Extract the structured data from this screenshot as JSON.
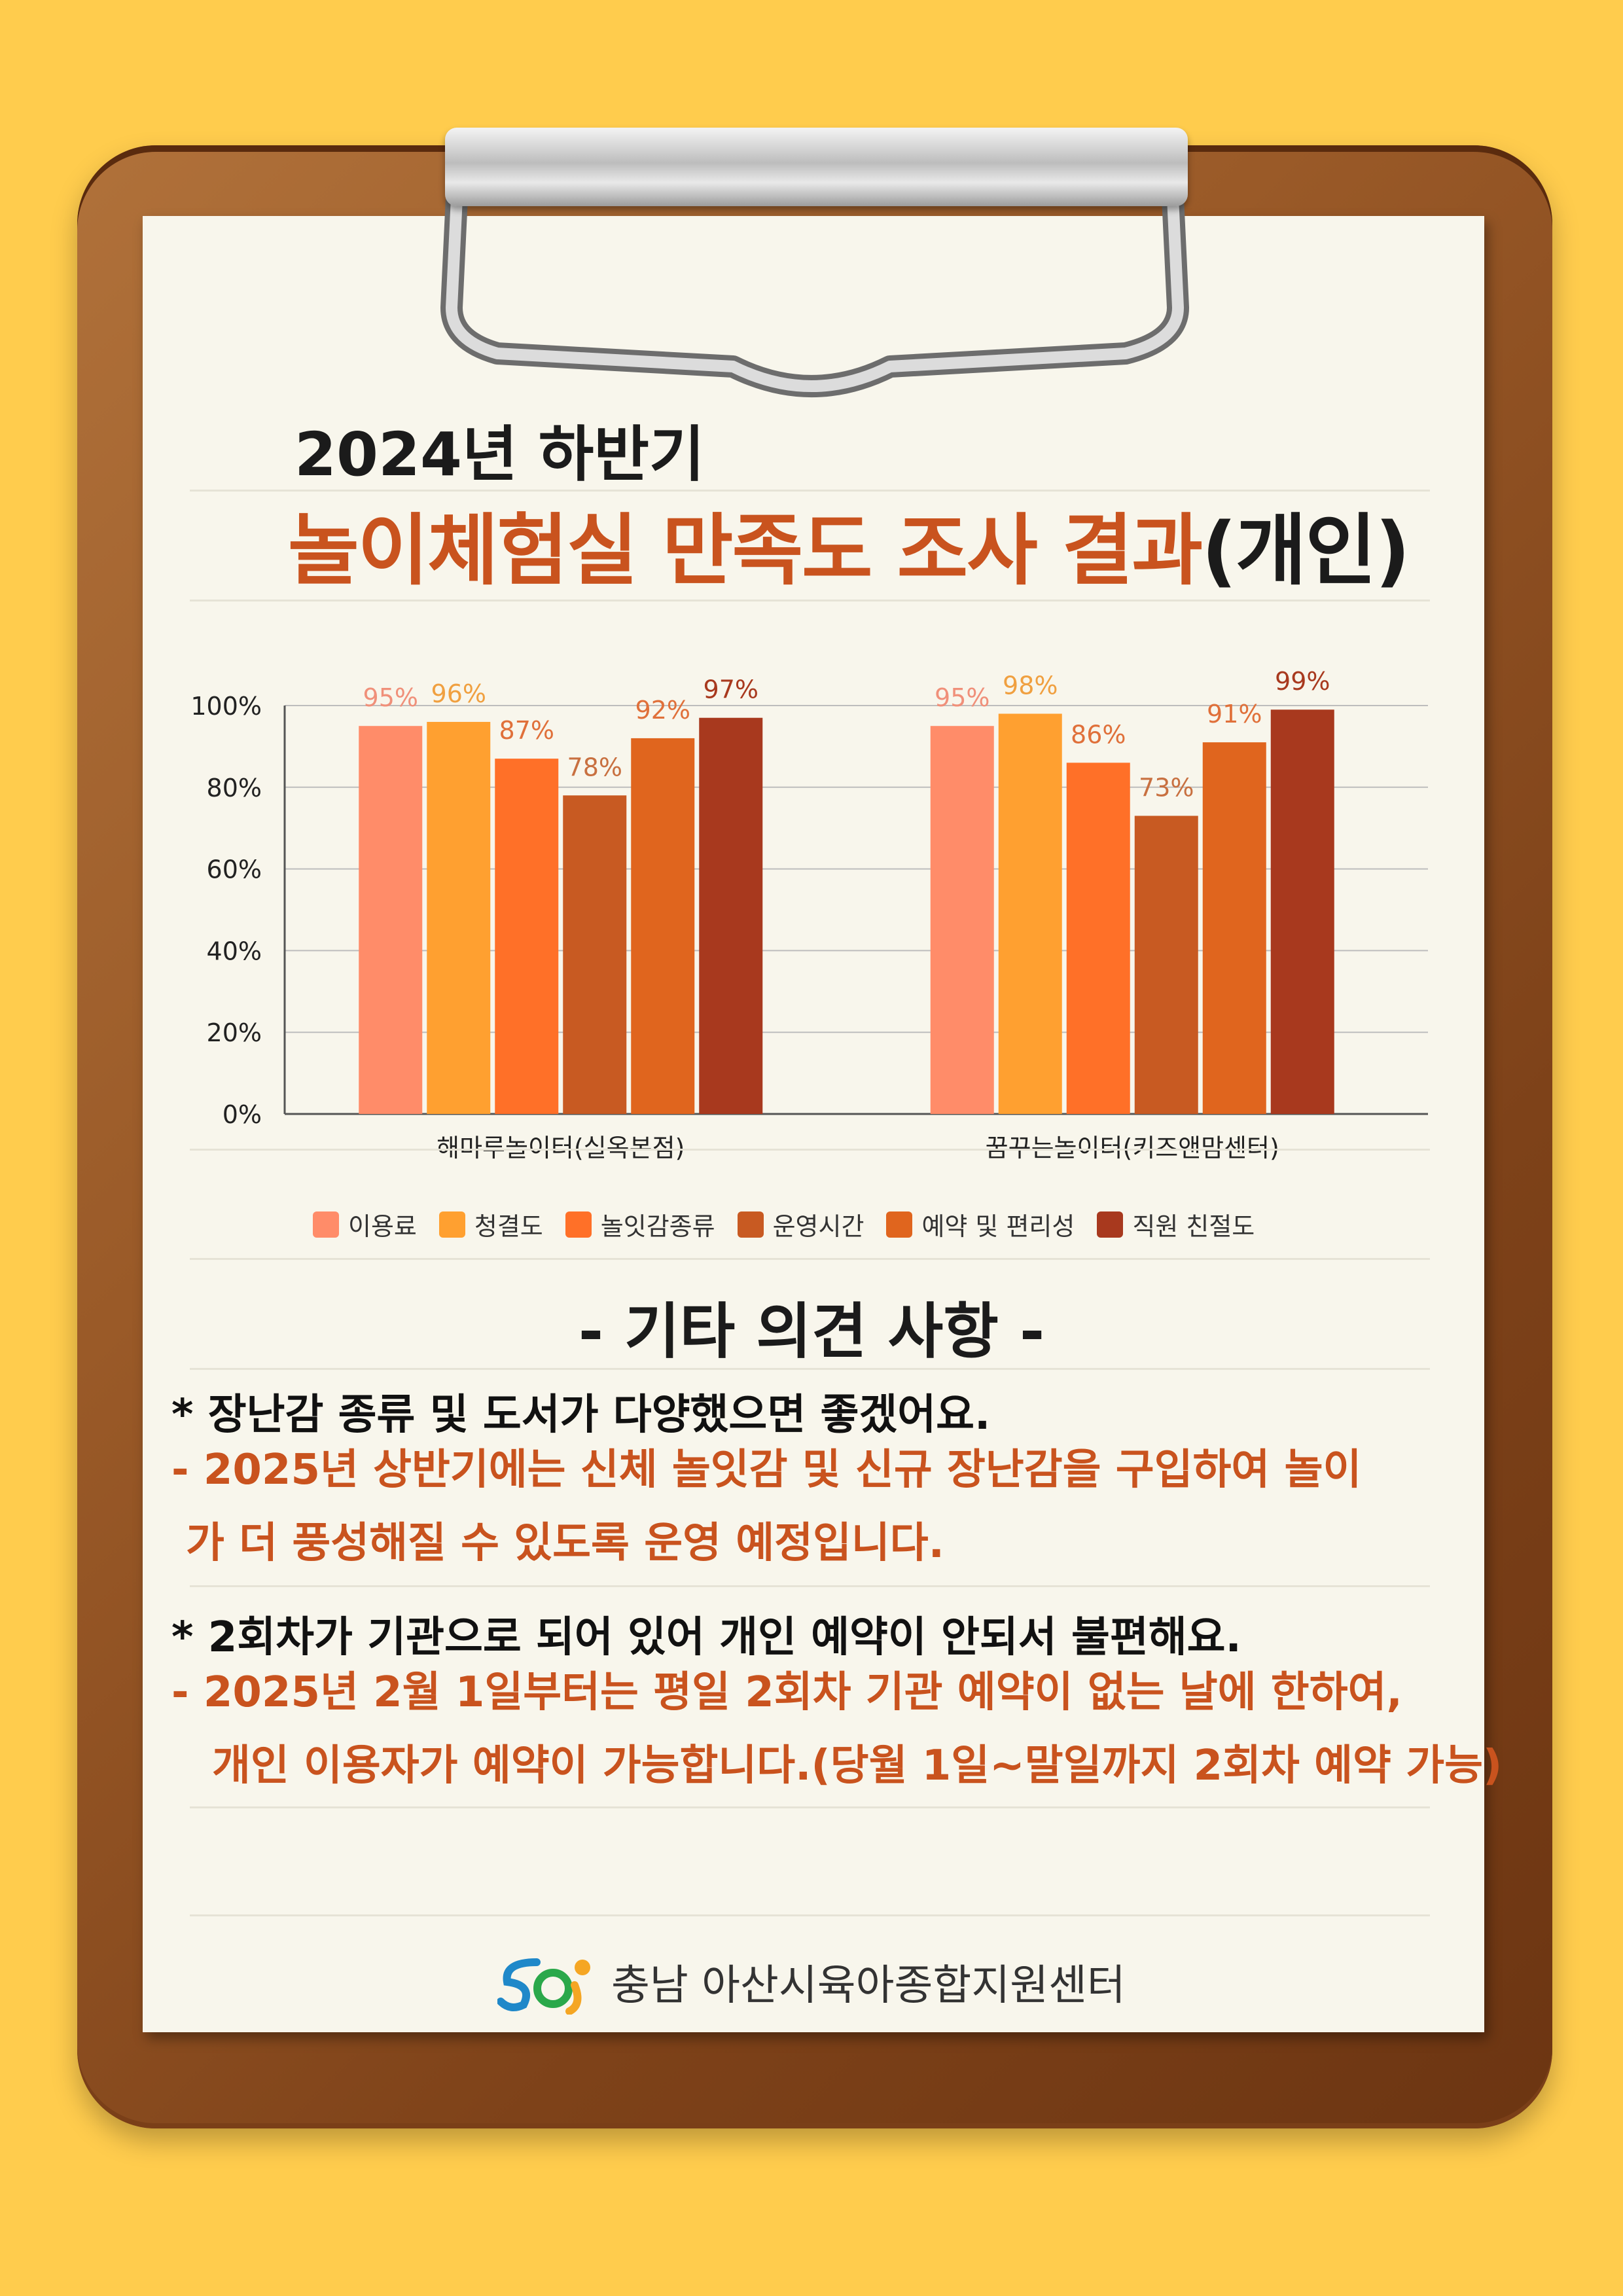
{
  "header": {
    "title_line1": "2024년 하반기",
    "title_line2_main": "놀이체험실 만족도 조사 결과",
    "title_line2_suffix": "(개인)"
  },
  "chart_data": {
    "type": "bar",
    "categories": [
      "해마루놀이터(실옥본점)",
      "꿈꾸는놀이터(키즈앤맘센터)"
    ],
    "series": [
      {
        "name": "이용료",
        "values": [
          95,
          95
        ],
        "color": "#FF8C69"
      },
      {
        "name": "청결도",
        "values": [
          96,
          98
        ],
        "color": "#FFA030"
      },
      {
        "name": "놀잇감종류",
        "values": [
          87,
          86
        ],
        "color": "#FF7028"
      },
      {
        "name": "운영시간",
        "values": [
          78,
          73
        ],
        "color": "#C85A22"
      },
      {
        "name": "예약 및 편리성",
        "values": [
          92,
          91
        ],
        "color": "#E0651E"
      },
      {
        "name": "직원 친절도",
        "values": [
          97,
          99
        ],
        "color": "#A8391E"
      }
    ],
    "label_colors": [
      "#F0907A",
      "#F0A040",
      "#E0703A",
      "#C87040",
      "#E0703A",
      "#A8391E"
    ],
    "yticks": [
      "0%",
      "20%",
      "40%",
      "60%",
      "80%",
      "100%"
    ],
    "ylim": [
      0,
      100
    ],
    "grid": true,
    "legend": "bottom"
  },
  "opinions": {
    "title": "- 기타 의견 사항 -",
    "q1": "* 장난감  종류 및 도서가 다양했으면 좋겠어요.",
    "a1_line1": "- 2025년 상반기에는 신체 놀잇감 및 신규 장난감을 구입하여 놀이",
    "a1_line2": "가 더 풍성해질 수 있도록 운영 예정입니다.",
    "q2": "* 2회차가 기관으로 되어 있어 개인 예약이 안되서 불편해요.",
    "a2_line1": "- 2025년 2월 1일부터는 평일 2회차 기관 예약이 없는 날에 한하여,",
    "a2_line2": "개인 이용자가 예약이 가능합니다.(당월 1일~말일까지 2회차 예약 가능)"
  },
  "footer": {
    "org_name": "충남 아산시육아종합지원센터"
  }
}
